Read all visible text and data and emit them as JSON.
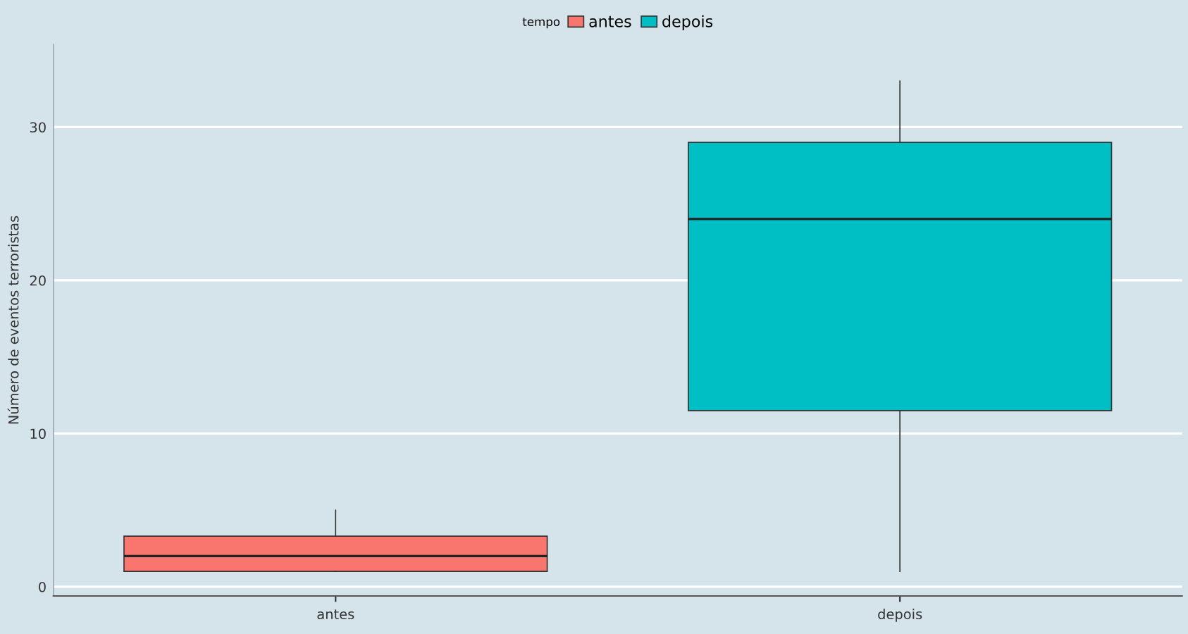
{
  "chart_data": {
    "type": "box",
    "ylabel": "Número de eventos terroristas",
    "legend_title": "tempo",
    "categories": [
      "antes",
      "depois"
    ],
    "series": [
      {
        "name": "antes",
        "color": "#f8766d",
        "boxes": [
          {
            "low": 1,
            "q1": 1,
            "median": 2,
            "q3": 3.3,
            "high": 5
          },
          null
        ]
      },
      {
        "name": "depois",
        "color": "#00bfc4",
        "boxes": [
          null,
          {
            "low": 1,
            "q1": 11.5,
            "median": 24,
            "q3": 29,
            "high": 33
          }
        ]
      }
    ],
    "ylim": [
      -0.6,
      35.4
    ],
    "yticks": [
      0,
      10,
      20,
      30
    ],
    "grid": "y",
    "legend": "top"
  }
}
